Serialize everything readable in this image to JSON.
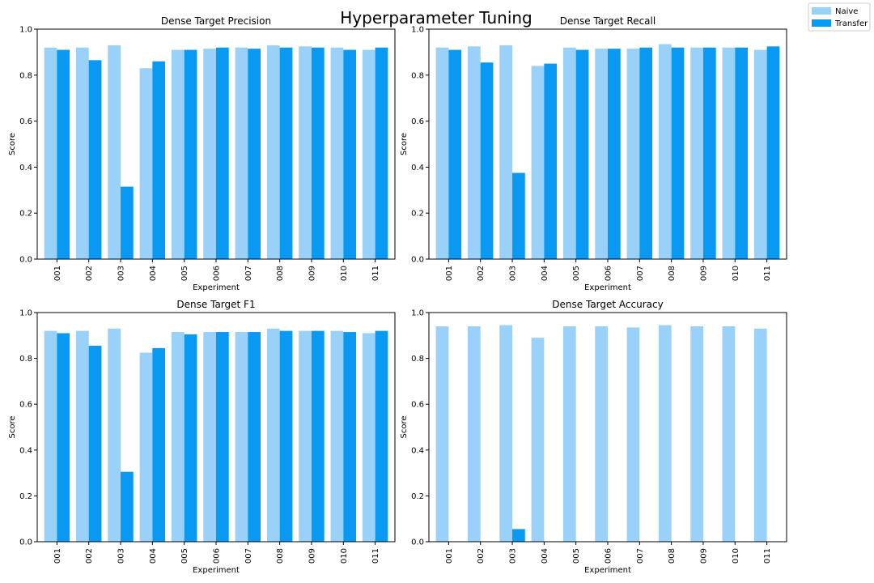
{
  "figure": {
    "title": "Hyperparameter Tuning"
  },
  "legend": {
    "items": [
      {
        "label": "Naive",
        "color": "#99d1f8"
      },
      {
        "label": "Transfer",
        "color": "#0a99f2"
      }
    ],
    "position": "top-right"
  },
  "chart_data": [
    {
      "type": "bar",
      "title": "Dense Target Precision",
      "xlabel": "Experiment",
      "ylabel": "Score",
      "ylim": [
        0,
        1
      ],
      "yticks": [
        "0.0",
        "0.2",
        "0.4",
        "0.6",
        "0.8",
        "1.0"
      ],
      "categories": [
        "001",
        "002",
        "003",
        "004",
        "005",
        "006",
        "007",
        "008",
        "009",
        "010",
        "011"
      ],
      "series": [
        {
          "name": "Naive",
          "values": [
            0.92,
            0.92,
            0.93,
            0.83,
            0.91,
            0.915,
            0.92,
            0.93,
            0.925,
            0.92,
            0.91
          ]
        },
        {
          "name": "Transfer",
          "values": [
            0.91,
            0.865,
            0.315,
            0.86,
            0.91,
            0.92,
            0.915,
            0.92,
            0.92,
            0.91,
            0.92
          ]
        }
      ]
    },
    {
      "type": "bar",
      "title": "Dense Target Recall",
      "xlabel": "Experiment",
      "ylabel": "Score",
      "ylim": [
        0,
        1
      ],
      "yticks": [
        "0.0",
        "0.2",
        "0.4",
        "0.6",
        "0.8",
        "1.0"
      ],
      "categories": [
        "001",
        "002",
        "003",
        "004",
        "005",
        "006",
        "007",
        "008",
        "009",
        "010",
        "011"
      ],
      "series": [
        {
          "name": "Naive",
          "values": [
            0.92,
            0.925,
            0.93,
            0.84,
            0.92,
            0.915,
            0.915,
            0.935,
            0.92,
            0.92,
            0.91
          ]
        },
        {
          "name": "Transfer",
          "values": [
            0.91,
            0.855,
            0.375,
            0.85,
            0.91,
            0.915,
            0.92,
            0.92,
            0.92,
            0.92,
            0.925
          ]
        }
      ]
    },
    {
      "type": "bar",
      "title": "Dense Target F1",
      "xlabel": "Experiment",
      "ylabel": "Score",
      "ylim": [
        0,
        1
      ],
      "yticks": [
        "0.0",
        "0.2",
        "0.4",
        "0.6",
        "0.8",
        "1.0"
      ],
      "categories": [
        "001",
        "002",
        "003",
        "004",
        "005",
        "006",
        "007",
        "008",
        "009",
        "010",
        "011"
      ],
      "series": [
        {
          "name": "Naive",
          "values": [
            0.92,
            0.92,
            0.93,
            0.825,
            0.915,
            0.915,
            0.915,
            0.93,
            0.92,
            0.92,
            0.91
          ]
        },
        {
          "name": "Transfer",
          "values": [
            0.91,
            0.855,
            0.305,
            0.845,
            0.905,
            0.915,
            0.915,
            0.92,
            0.92,
            0.915,
            0.92
          ]
        }
      ]
    },
    {
      "type": "bar",
      "title": "Dense Target Accuracy",
      "xlabel": "Experiment",
      "ylabel": "Score",
      "ylim": [
        0,
        1
      ],
      "yticks": [
        "0.0",
        "0.2",
        "0.4",
        "0.6",
        "0.8",
        "1.0"
      ],
      "categories": [
        "001",
        "002",
        "003",
        "004",
        "005",
        "006",
        "007",
        "008",
        "009",
        "010",
        "011"
      ],
      "series": [
        {
          "name": "Naive",
          "values": [
            0.94,
            0.94,
            0.945,
            0.89,
            0.94,
            0.94,
            0.935,
            0.945,
            0.94,
            0.94,
            0.93
          ]
        },
        {
          "name": "Transfer",
          "values": [
            0,
            0,
            0.055,
            0,
            0,
            0,
            0,
            0,
            0,
            0,
            0
          ]
        }
      ]
    }
  ]
}
